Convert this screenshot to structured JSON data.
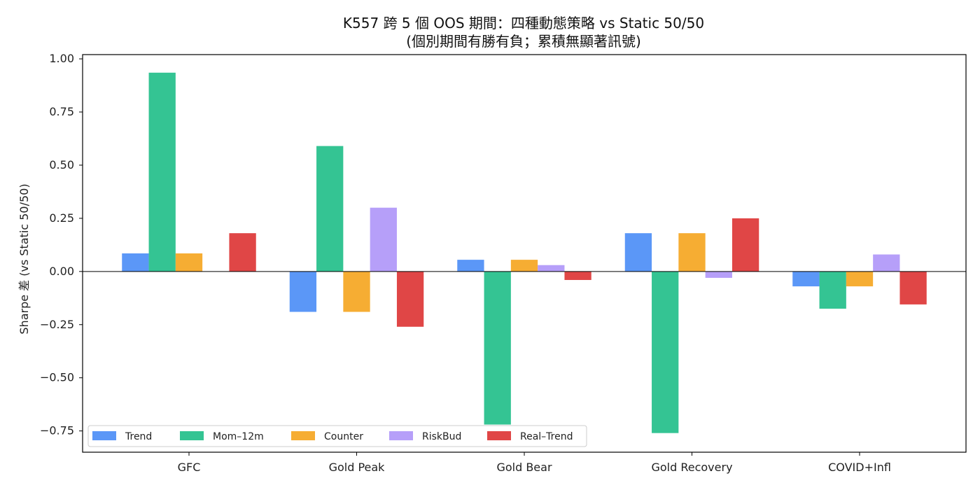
{
  "chart_data": {
    "type": "bar",
    "title": "K557 跨 5 個 OOS 期間：四種動態策略 vs Static 50/50",
    "subtitle": "(個別期間有勝有負；累積無顯著訊號)",
    "xlabel": "",
    "ylabel": "Sharpe 差 (vs Static 50/50)",
    "ylim": [
      -0.85,
      1.02
    ],
    "yticks": [
      1.0,
      0.75,
      0.5,
      0.25,
      0.0,
      -0.25,
      -0.5,
      -0.75
    ],
    "ytick_labels": [
      "1.00",
      "0.75",
      "0.50",
      "0.25",
      "0.00",
      "−0.25",
      "−0.50",
      "−0.75"
    ],
    "categories": [
      "GFC",
      "Gold Peak",
      "Gold Bear",
      "Gold Recovery",
      "COVID+Infl"
    ],
    "series": [
      {
        "name": "Trend",
        "color": "#5b97f7",
        "values": [
          0.085,
          -0.19,
          0.055,
          0.18,
          -0.07
        ]
      },
      {
        "name": "Mom–12m",
        "color": "#34c493",
        "values": [
          0.935,
          0.59,
          -0.72,
          -0.76,
          -0.175
        ]
      },
      {
        "name": "Counter",
        "color": "#f6ad33",
        "values": [
          0.085,
          -0.19,
          0.055,
          0.18,
          -0.07
        ]
      },
      {
        "name": "RiskBud",
        "color": "#b69ff9",
        "values": [
          0.0,
          0.3,
          0.03,
          -0.03,
          0.08
        ]
      },
      {
        "name": "Real–Trend",
        "color": "#e04646",
        "values": [
          0.18,
          -0.26,
          -0.04,
          0.25,
          -0.155
        ]
      }
    ],
    "grid": false,
    "legend_position": "lower-left",
    "zero_line": true
  }
}
